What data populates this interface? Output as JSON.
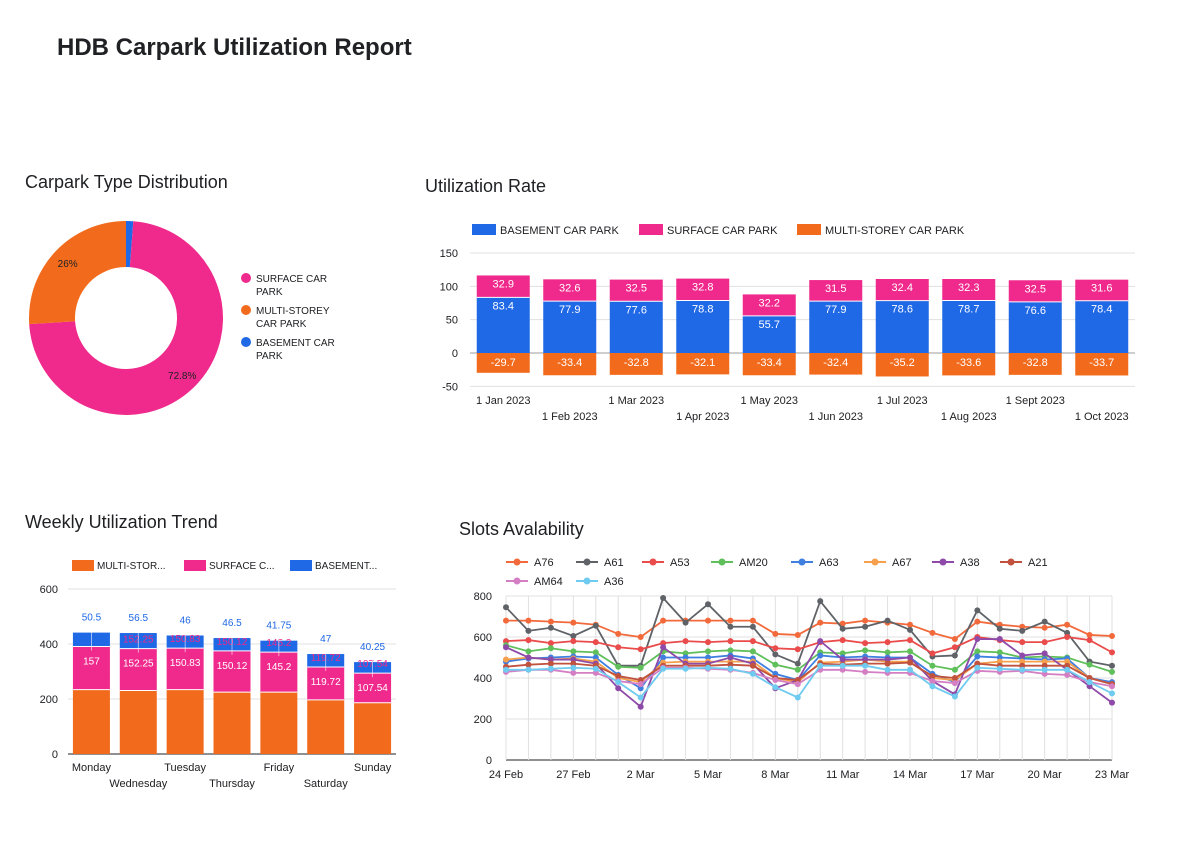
{
  "report_title": "HDB Carpark Utilization Report",
  "colors": {
    "surface": "#ef2a8c",
    "multistorey": "#f26b1d",
    "basement": "#1f68e6",
    "grid": "#e0e0e0",
    "axis": "#202124"
  },
  "chart_data": [
    {
      "id": "donut",
      "type": "pie",
      "title": "Carpark Type Distribution",
      "slices": [
        {
          "name": "SURFACE CAR PARK",
          "value": 72.8,
          "label": "72.8%",
          "color": "#ef2a8c"
        },
        {
          "name": "MULTI-STOREY CAR PARK",
          "value": 26,
          "label": "26%",
          "color": "#f26b1d"
        },
        {
          "name": "BASEMENT CAR PARK",
          "value": 1.2,
          "label": "",
          "color": "#1f68e6"
        }
      ],
      "legend": [
        {
          "line1": "SURFACE CAR",
          "line2": "PARK",
          "color": "#ef2a8c"
        },
        {
          "line1": "MULTI-STOREY",
          "line2": "CAR PARK",
          "color": "#f26b1d"
        },
        {
          "line1": "BASEMENT CAR",
          "line2": "PARK",
          "color": "#1f68e6"
        }
      ],
      "legend_position": "right"
    },
    {
      "id": "utilization",
      "type": "bar",
      "stacked": true,
      "title": "Utilization Rate",
      "categories": [
        "1 Jan 2023",
        "1 Feb 2023",
        "1 Mar 2023",
        "1 Apr 2023",
        "1 May 2023",
        "1 Jun 2023",
        "1 Jul 2023",
        "1 Aug 2023",
        "1 Sept 2023",
        "1 Oct 2023"
      ],
      "series": [
        {
          "name": "BASEMENT CAR PARK",
          "color": "#1f68e6",
          "values": [
            83.4,
            77.9,
            77.6,
            78.8,
            55.7,
            77.9,
            78.6,
            78.7,
            76.6,
            78.4
          ]
        },
        {
          "name": "SURFACE CAR PARK",
          "color": "#ef2a8c",
          "values": [
            32.9,
            32.6,
            32.5,
            32.8,
            32.2,
            31.5,
            32.4,
            32.3,
            32.5,
            31.6
          ]
        },
        {
          "name": "MULTI-STOREY CAR PARK",
          "color": "#f26b1d",
          "values": [
            -29.7,
            -33.4,
            -32.8,
            -32.1,
            -33.4,
            -32.4,
            -35.2,
            -33.6,
            -32.8,
            -33.7
          ]
        }
      ],
      "y_ticks": [
        150,
        100,
        50,
        0,
        -50
      ],
      "ylim": [
        -50,
        150
      ],
      "grid": true,
      "legend_position": "top"
    },
    {
      "id": "weekly",
      "type": "bar",
      "stacked": true,
      "title": "Weekly Utilization Trend",
      "categories": [
        "Monday",
        "Wednesday",
        "Tuesday",
        "Thursday",
        "Friday",
        "Saturday",
        "Sunday"
      ],
      "series": [
        {
          "name": "MULTI-STOR...",
          "color": "#f26b1d",
          "values": [
            233.97,
            231.09,
            234.13,
            224.98,
            225.14,
            196.76,
            186.39
          ]
        },
        {
          "name": "SURFACE C...",
          "color": "#ef2a8c",
          "values": [
            157,
            152.25,
            150.83,
            150.12,
            145.2,
            119.72,
            107.54
          ]
        },
        {
          "name": "BASEMENT...",
          "color": "#1f68e6",
          "values": [
            50.5,
            56.5,
            46,
            46.5,
            41.75,
            47,
            40.25
          ]
        }
      ],
      "y_ticks": [
        600,
        400,
        200,
        0
      ],
      "ylim": [
        0,
        600
      ],
      "grid": true,
      "legend_position": "top"
    },
    {
      "id": "slots",
      "type": "line",
      "title": "Slots Avalability",
      "x_ticks": [
        "24 Feb",
        "27 Feb",
        "2 Mar",
        "5 Mar",
        "8 Mar",
        "11 Mar",
        "14 Mar",
        "17 Mar",
        "20 Mar",
        "23 Mar"
      ],
      "y_ticks": [
        800,
        600,
        400,
        200,
        0
      ],
      "ylim": [
        0,
        800
      ],
      "grid": true,
      "legend_position": "top",
      "series": [
        {
          "name": "A76",
          "color": "#f26a3b",
          "values": [
            680,
            680,
            675,
            670,
            660,
            615,
            600,
            680,
            680,
            680,
            680,
            680,
            615,
            610,
            670,
            665,
            680,
            670,
            660,
            620,
            590,
            675,
            660,
            650,
            645,
            660,
            610,
            605
          ]
        },
        {
          "name": "A61",
          "color": "#5f6368",
          "values": [
            745,
            630,
            645,
            605,
            655,
            460,
            460,
            790,
            670,
            760,
            650,
            650,
            515,
            470,
            775,
            640,
            650,
            680,
            635,
            505,
            510,
            730,
            640,
            630,
            675,
            620,
            480,
            460
          ]
        },
        {
          "name": "A53",
          "color": "#ea4b4b",
          "values": [
            580,
            585,
            570,
            580,
            575,
            550,
            540,
            570,
            580,
            575,
            580,
            580,
            545,
            540,
            575,
            585,
            570,
            575,
            585,
            520,
            550,
            600,
            585,
            575,
            575,
            600,
            585,
            525
          ]
        },
        {
          "name": "AM20",
          "color": "#5fbf5a",
          "values": [
            560,
            530,
            545,
            530,
            525,
            455,
            450,
            530,
            520,
            530,
            535,
            530,
            465,
            440,
            525,
            520,
            535,
            525,
            530,
            460,
            440,
            530,
            525,
            500,
            505,
            500,
            465,
            430
          ]
        },
        {
          "name": "A63",
          "color": "#3e7fe0",
          "values": [
            480,
            495,
            500,
            505,
            500,
            415,
            350,
            500,
            500,
            500,
            510,
            495,
            420,
            390,
            510,
            500,
            505,
            500,
            500,
            420,
            380,
            505,
            500,
            495,
            490,
            495,
            400,
            380
          ]
        },
        {
          "name": "A67",
          "color": "#f6a04d",
          "values": [
            490,
            500,
            490,
            495,
            480,
            400,
            380,
            475,
            480,
            480,
            480,
            480,
            400,
            380,
            475,
            480,
            490,
            480,
            480,
            400,
            390,
            470,
            480,
            480,
            480,
            480,
            400,
            370
          ]
        },
        {
          "name": "A38",
          "color": "#8e4aa8",
          "values": [
            550,
            500,
            490,
            490,
            470,
            350,
            260,
            550,
            470,
            470,
            500,
            470,
            350,
            390,
            580,
            490,
            490,
            490,
            500,
            385,
            320,
            590,
            590,
            510,
            520,
            440,
            360,
            280
          ]
        },
        {
          "name": "A21",
          "color": "#c0523e",
          "values": [
            455,
            465,
            470,
            470,
            460,
            410,
            390,
            460,
            460,
            460,
            465,
            460,
            400,
            390,
            470,
            465,
            470,
            470,
            475,
            410,
            400,
            470,
            460,
            460,
            460,
            460,
            400,
            370
          ]
        },
        {
          "name": "AM64",
          "color": "#d47fc4",
          "values": [
            430,
            440,
            440,
            425,
            425,
            385,
            370,
            450,
            450,
            445,
            440,
            425,
            390,
            370,
            440,
            440,
            430,
            425,
            425,
            385,
            375,
            435,
            430,
            435,
            420,
            415,
            380,
            360
          ]
        },
        {
          "name": "A36",
          "color": "#6fcbef",
          "values": [
            440,
            440,
            445,
            450,
            445,
            380,
            305,
            445,
            445,
            450,
            445,
            420,
            355,
            305,
            460,
            460,
            460,
            440,
            440,
            360,
            310,
            450,
            445,
            440,
            440,
            440,
            380,
            325
          ]
        }
      ]
    }
  ]
}
